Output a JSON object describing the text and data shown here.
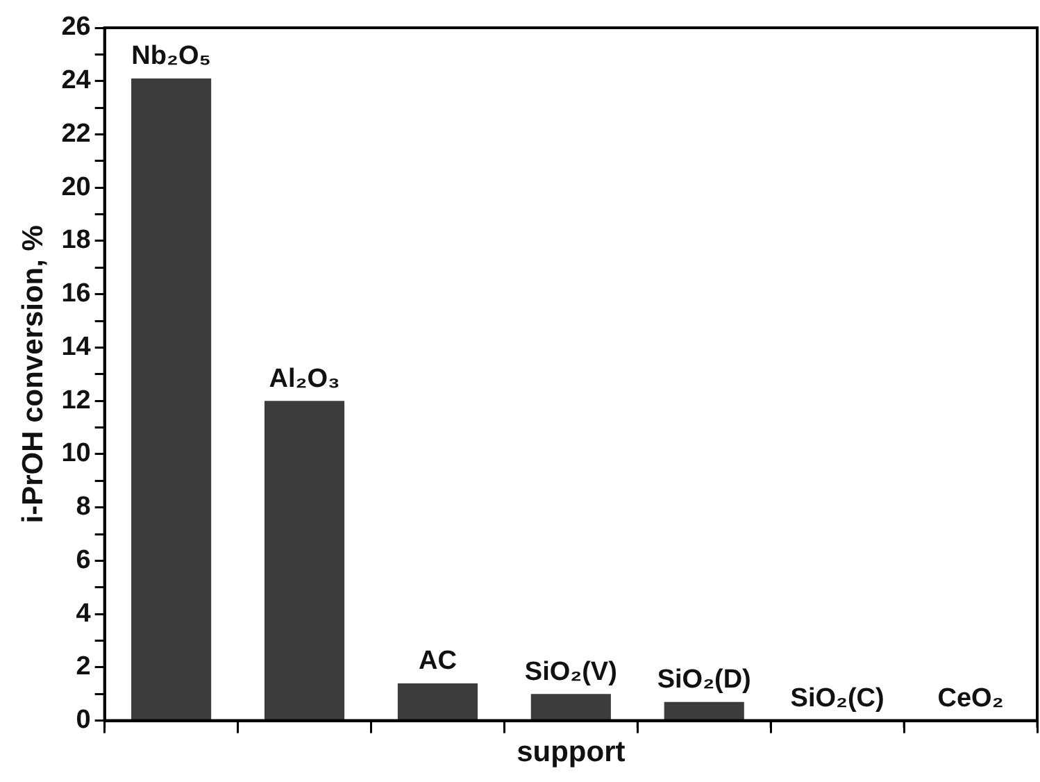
{
  "chart_data": {
    "type": "bar",
    "xlabel": "support",
    "ylabel": "i-PrOH conversion, %",
    "categories": [
      "Nb₂O₅",
      "Al₂O₃",
      "AC",
      "SiO₂(V)",
      "SiO₂(D)",
      "SiO₂(C)",
      "CeO₂"
    ],
    "values": [
      24.1,
      12.0,
      1.4,
      1.0,
      0.7,
      0,
      0
    ],
    "color": "#3c3c3c",
    "ylim": [
      0,
      26
    ],
    "yticks": [
      0,
      {
        "value": 1,
        "label": null
      },
      2,
      {
        "value": 3,
        "label": null
      },
      4,
      {
        "value": 5,
        "label": null
      },
      6,
      {
        "value": 7,
        "label": null
      },
      8,
      {
        "value": 9,
        "label": null
      },
      10,
      {
        "value": 11,
        "label": null
      },
      12,
      {
        "value": 13,
        "label": null
      },
      14,
      {
        "value": 15,
        "label": null
      },
      16,
      {
        "value": 17,
        "label": null
      },
      18,
      {
        "value": 19,
        "label": null
      },
      20,
      {
        "value": 21,
        "label": null
      },
      22,
      {
        "value": 23,
        "label": null
      },
      24,
      {
        "value": 25,
        "label": null
      },
      26
    ],
    "tick_labels": "y",
    "grid": false,
    "legend": false
  }
}
